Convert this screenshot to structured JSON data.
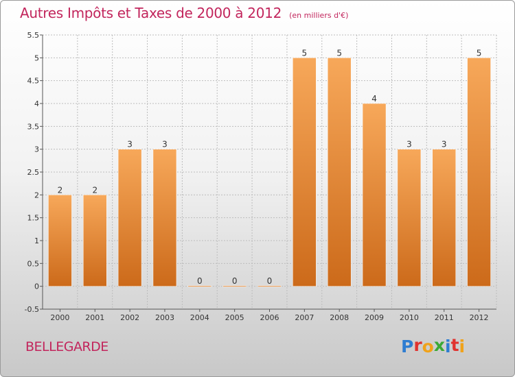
{
  "header": {
    "title": "Autres Impôts et Taxes de 2000 à 2012",
    "subtitle": "(en milliers d'€)"
  },
  "footer": {
    "commune": "BELLEGARDE",
    "logo_text": "Proxiti",
    "logo_letters": [
      {
        "char": "P",
        "color": "#2e7dd1"
      },
      {
        "char": "r",
        "color": "#e0332f"
      },
      {
        "char": "o",
        "color": "#f0a21a"
      },
      {
        "char": "x",
        "color": "#3ba935"
      },
      {
        "char": "i",
        "color": "#2e7dd1"
      },
      {
        "char": "t",
        "color": "#e0332f"
      },
      {
        "char": "i",
        "color": "#f0a21a"
      }
    ]
  },
  "colors": {
    "title": "#c2255c",
    "bar_light": "#f7a85a",
    "bar_dark": "#cc6a1a",
    "grid": "#bcbcbc"
  },
  "chart_data": {
    "type": "bar",
    "title": "Autres Impôts et Taxes de 2000 à 2012",
    "subtitle": "(en milliers d'€)",
    "categories": [
      "2000",
      "2001",
      "2002",
      "2003",
      "2004",
      "2005",
      "2006",
      "2007",
      "2008",
      "2009",
      "2010",
      "2011",
      "2012"
    ],
    "values": [
      2,
      2,
      3,
      3,
      0,
      0,
      0,
      5,
      5,
      4,
      3,
      3,
      5
    ],
    "data_labels": [
      "2",
      "2",
      "3",
      "3",
      "0",
      "0",
      "0",
      "5",
      "5",
      "4",
      "3",
      "3",
      "5"
    ],
    "ylim": [
      -0.5,
      5.5
    ],
    "y_ticks": [
      "-0.5",
      "0",
      "0.5",
      "1",
      "1.5",
      "2",
      "2.5",
      "3",
      "3.5",
      "4",
      "4.5",
      "5",
      "5.5"
    ],
    "y_tick_values": [
      -0.5,
      0,
      0.5,
      1,
      1.5,
      2,
      2.5,
      3,
      3.5,
      4,
      4.5,
      5,
      5.5
    ],
    "grid": true,
    "legend": "none"
  }
}
